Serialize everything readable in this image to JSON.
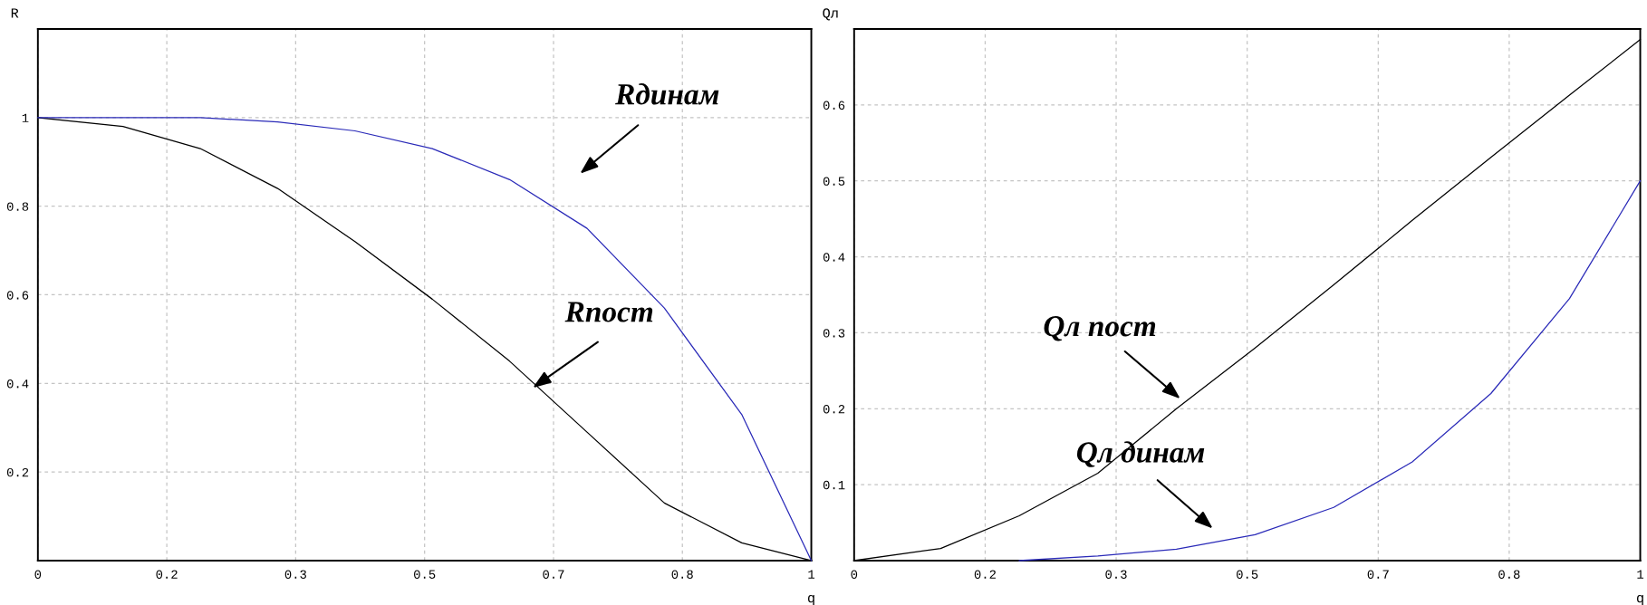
{
  "chart_data": [
    {
      "type": "line",
      "xlabel": "q",
      "ylabel": "R",
      "x": [
        0,
        0.11,
        0.21,
        0.31,
        0.41,
        0.51,
        0.61,
        0.71,
        0.81,
        0.91,
        1
      ],
      "series": [
        {
          "color": "#000000",
          "values": [
            1,
            0.98,
            0.93,
            0.84,
            0.72,
            0.59,
            0.45,
            0.29,
            0.13,
            0.04,
            0
          ]
        },
        {
          "color": "#2a2ab8",
          "values": [
            1,
            1,
            1,
            0.99,
            0.97,
            0.93,
            0.86,
            0.75,
            0.57,
            0.33,
            0
          ]
        }
      ],
      "xlim": [
        0,
        1
      ],
      "ylim": [
        0,
        1.2
      ],
      "xticks": [
        0,
        {
          "value": 0.1667,
          "label": "0.2"
        },
        {
          "value": 0.3333,
          "label": "0.3"
        },
        0.5,
        {
          "value": 0.6667,
          "label": "0.7"
        },
        {
          "value": 0.8333,
          "label": "0.8"
        },
        1
      ],
      "yticks": [
        0.2,
        0.4,
        0.6,
        0.8,
        1
      ],
      "grid": true,
      "annotations": [
        "Rдинам",
        {
          "text": "Rпост",
          "x": 0.64,
          "y": 0.39
        }
      ]
    },
    {
      "type": "line",
      "xlabel": "q",
      "ylabel": "Qл",
      "x": [
        0,
        0.11,
        0.21,
        0.31,
        0.41,
        0.51,
        0.61,
        0.71,
        0.81,
        0.91,
        1
      ],
      "series": [
        {
          "color": "#000000",
          "values": [
            0,
            0.016,
            0.059,
            0.115,
            0.2,
            0.28,
            0.363,
            0.448,
            0.531,
            0.613,
            0.686
          ]
        },
        {
          "color": "#2a2ab8",
          "values": [
            null,
            null,
            0,
            0.006,
            0.015,
            0.034,
            0.07,
            0.13,
            0.22,
            0.345,
            0.5
          ]
        }
      ],
      "xlim": [
        0,
        1
      ],
      "ylim": [
        0,
        0.7
      ],
      "xticks": [
        0,
        {
          "value": 0.1667,
          "label": "0.2"
        },
        {
          "value": 0.3333,
          "label": "0.3"
        },
        0.5,
        {
          "value": 0.6667,
          "label": "0.7"
        },
        {
          "value": 0.8333,
          "label": "0.8"
        },
        1
      ],
      "yticks": [
        0.1,
        0.2,
        0.3,
        0.4,
        0.5,
        0.6
      ],
      "grid": true,
      "annotations": [
        "Qл пост",
        "Qл динам"
      ]
    }
  ]
}
